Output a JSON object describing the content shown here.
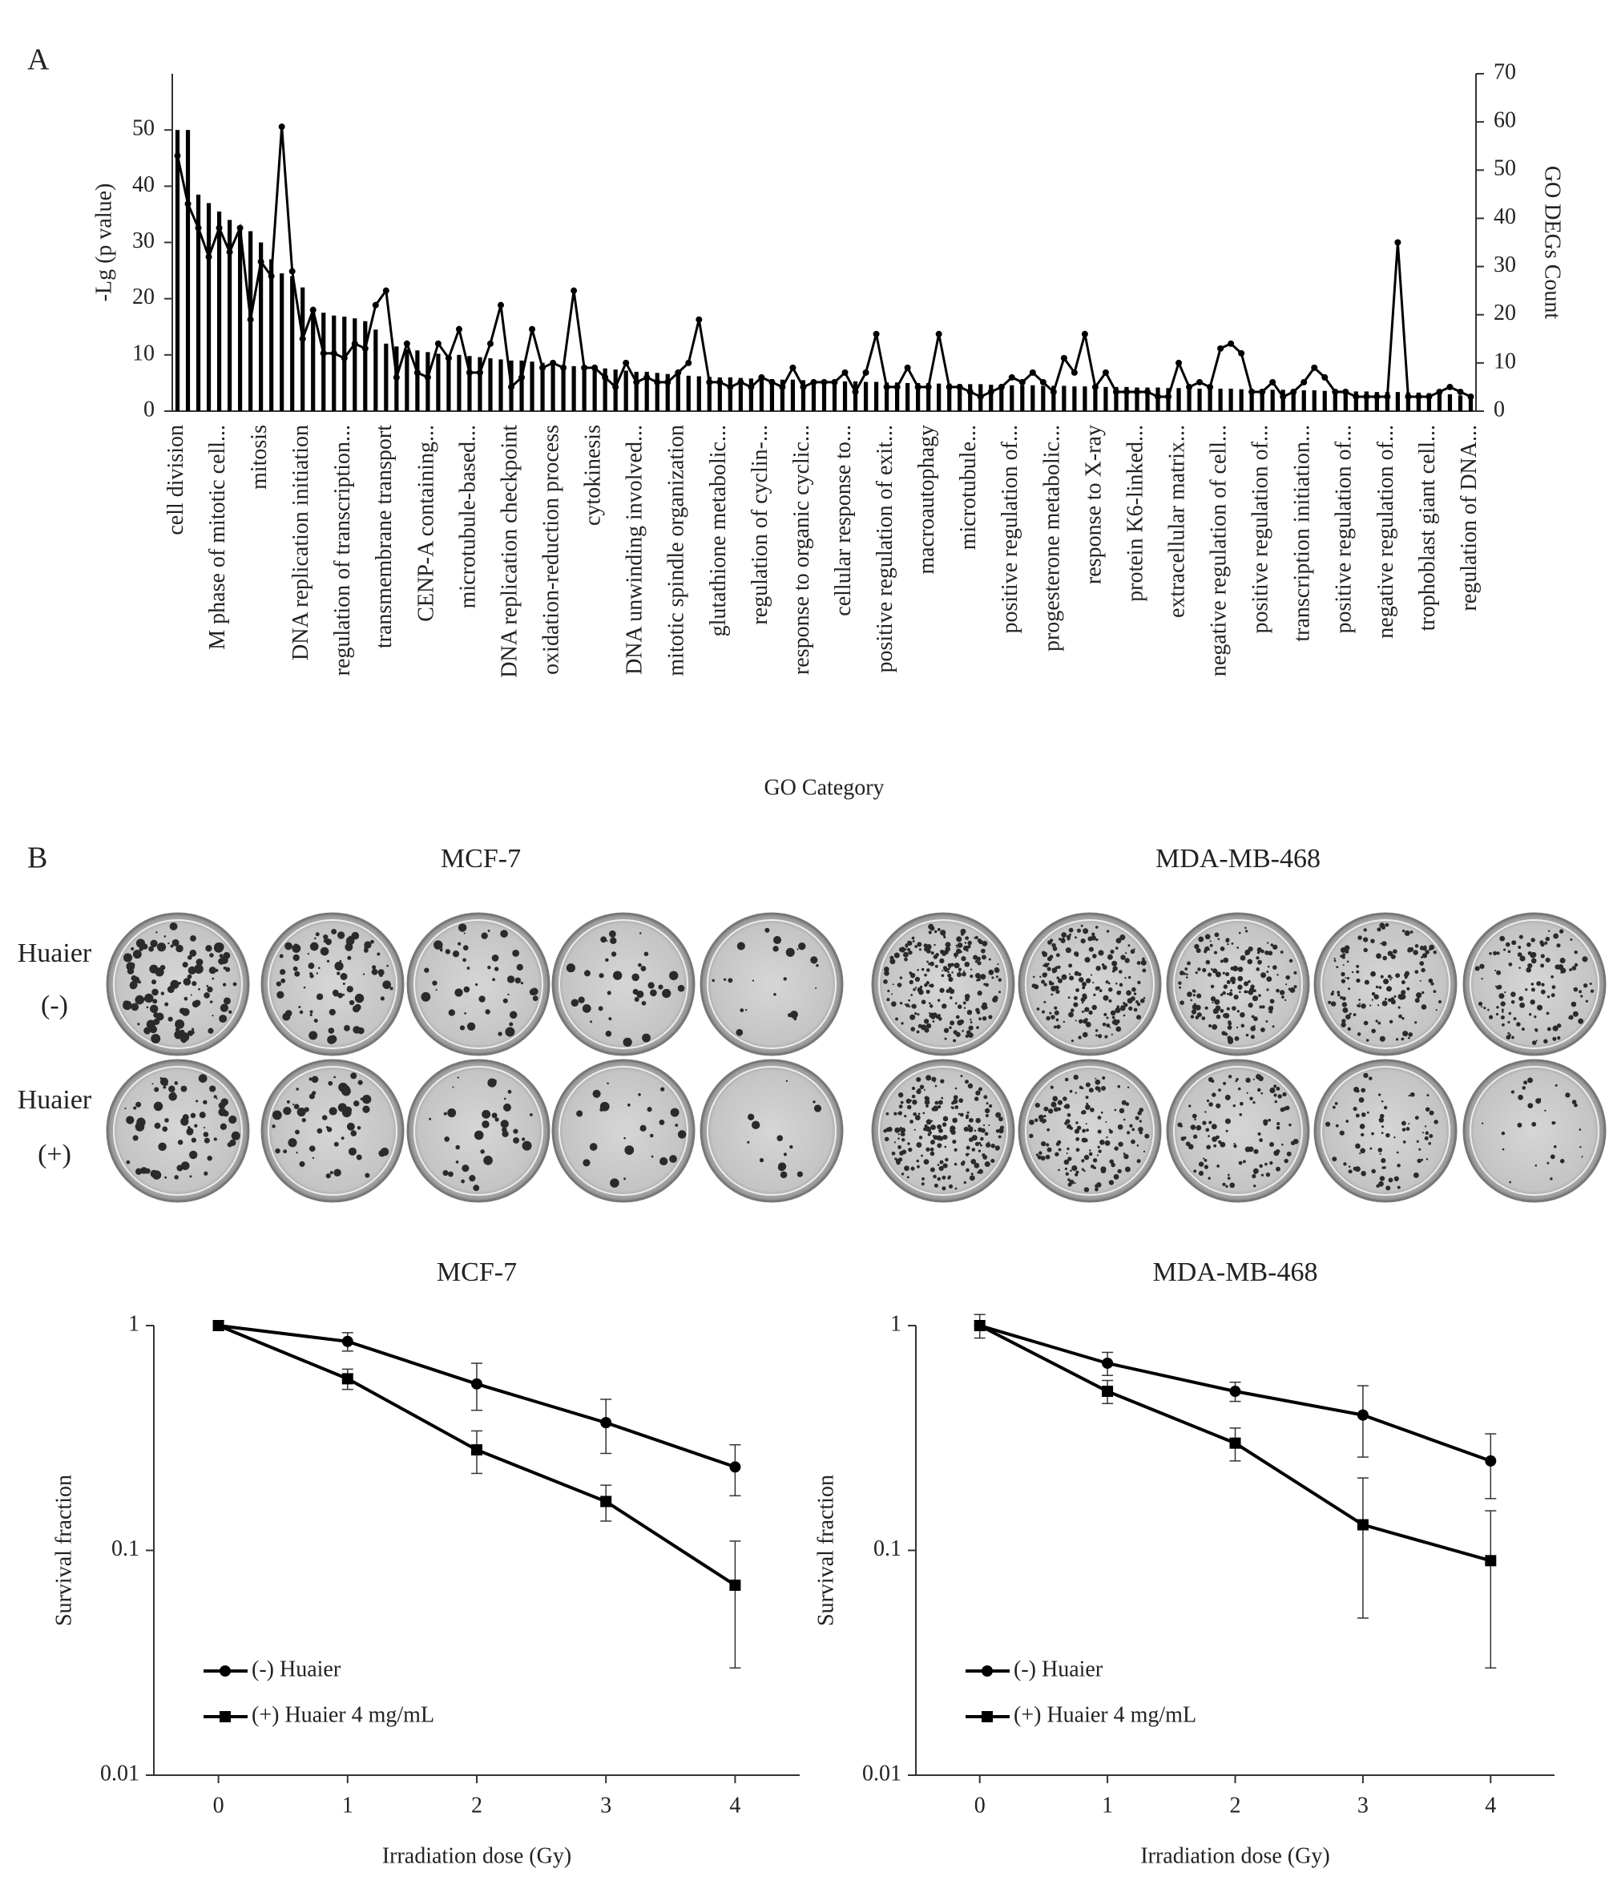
{
  "panel_labels": [
    "A",
    "B"
  ],
  "colony_assay": {
    "cell_lines": [
      "MCF-7",
      "MDA-MB-468"
    ],
    "rows": [
      {
        "label": "Huaier",
        "sign": "(-)"
      },
      {
        "label": "Huaier",
        "sign": "(+)"
      }
    ]
  },
  "chart_data": [
    {
      "type": "combo",
      "xlabel": "GO Category",
      "ylabel": "-Lg (p value)",
      "y2label": "GO DEGs Count",
      "ylim": [
        0,
        60
      ],
      "yticks": [
        0,
        10,
        20,
        30,
        40,
        50
      ],
      "y2lim": [
        0,
        70
      ],
      "y2ticks": [
        0,
        10,
        20,
        30,
        40,
        50,
        60,
        70
      ],
      "categories": [
        "cell division",
        null,
        null,
        null,
        "M phase of mitotic cell...",
        null,
        null,
        null,
        "mitosis",
        null,
        null,
        null,
        "DNA replication initiation",
        null,
        null,
        null,
        "regulation of transcription...",
        null,
        null,
        null,
        "transmembrane transport",
        null,
        null,
        null,
        "CENP-A containing...",
        null,
        null,
        null,
        "microtubule-based...",
        null,
        null,
        null,
        "DNA replication checkpoint",
        null,
        null,
        null,
        "oxidation-reduction process",
        null,
        null,
        null,
        "cytokinesis",
        null,
        null,
        null,
        "DNA unwinding involved...",
        null,
        null,
        null,
        "mitotic spindle organization",
        null,
        null,
        null,
        "glutathione metabolic...",
        null,
        null,
        null,
        "regulation of cyclin-...",
        null,
        null,
        null,
        "response to organic cyclic...",
        null,
        null,
        null,
        "cellular response to...",
        null,
        null,
        null,
        "positive regulation of exit...",
        null,
        null,
        null,
        "macroautophagy",
        null,
        null,
        null,
        "microtubule...",
        null,
        null,
        null,
        "positive regulation of...",
        null,
        null,
        null,
        "progesterone metabolic...",
        null,
        null,
        null,
        "response to X-ray",
        null,
        null,
        null,
        "protein K6-linked...",
        null,
        null,
        null,
        "extracellular matrix...",
        null,
        null,
        null,
        "negative regulation of cell...",
        null,
        null,
        null,
        "positive regulation of...",
        null,
        null,
        null,
        "transcription initiation...",
        null,
        null,
        null,
        "positive regulation of...",
        null,
        null,
        null,
        "negative regulation of...",
        null,
        null,
        null,
        "trophoblast giant cell...",
        null,
        null,
        null,
        "regulation of DNA..."
      ],
      "series": [
        {
          "type": "bar",
          "color": "#000000",
          "values": [
            50,
            50,
            38.5,
            37,
            35.5,
            34,
            33,
            32,
            30,
            27,
            24.5,
            24,
            22,
            18,
            17.5,
            17,
            16.8,
            16.5,
            16,
            14.5,
            12,
            11.5,
            11,
            10.8,
            10.5,
            10.2,
            10,
            10,
            9.8,
            9.6,
            9.4,
            9.2,
            9,
            9,
            8.8,
            8.6,
            8.4,
            8.2,
            8,
            8,
            7.8,
            7.6,
            7.4,
            7.2,
            7,
            7,
            6.8,
            6.6,
            6.4,
            6.3,
            6.2,
            6.1,
            6,
            6,
            5.9,
            5.8,
            5.8,
            5.7,
            5.6,
            5.6,
            5.5,
            5.5,
            5.4,
            5.4,
            5.3,
            5.3,
            5.2,
            5.2,
            5.1,
            5.1,
            5,
            5,
            5,
            4.9,
            4.9,
            4.8,
            4.8,
            4.8,
            4.7,
            4.7,
            4.6,
            4.6,
            4.6,
            4.5,
            4.5,
            4.5,
            4.4,
            4.4,
            4.4,
            4.3,
            4.3,
            4.3,
            4.2,
            4.2,
            4.2,
            4.1,
            4.1,
            4.1,
            4,
            4,
            4,
            4,
            3.9,
            3.9,
            3.9,
            3.8,
            3.8,
            3.8,
            3.7,
            3.7,
            3.6,
            3.6,
            3.5,
            3.5,
            3.5,
            3.4,
            3.4,
            3.4,
            3.3,
            3.3,
            3.2,
            3.1,
            3,
            2.8,
            2.6
          ]
        },
        {
          "type": "line",
          "axis": "y2",
          "color": "#000000",
          "values": [
            53,
            43,
            38,
            32,
            38,
            33,
            38,
            19,
            31,
            28,
            59,
            29,
            15,
            21,
            12,
            12,
            11,
            14,
            13,
            22,
            25,
            7,
            14,
            8,
            7,
            14,
            11,
            17,
            8,
            8,
            14,
            22,
            5,
            7,
            17,
            9,
            10,
            9,
            25,
            9,
            9,
            7,
            5,
            10,
            6,
            7,
            6,
            6,
            8,
            10,
            19,
            6,
            6,
            5,
            6,
            5,
            7,
            6,
            5,
            9,
            5,
            6,
            6,
            6,
            8,
            4,
            8,
            16,
            5,
            5,
            9,
            5,
            5,
            16,
            5,
            5,
            4,
            3,
            4,
            5,
            7,
            6,
            8,
            6,
            4,
            11,
            8,
            16,
            5,
            8,
            4,
            4,
            4,
            4,
            3,
            3,
            10,
            5,
            6,
            5,
            13,
            14,
            12,
            4,
            4,
            6,
            3,
            4,
            6,
            9,
            7,
            4,
            4,
            3,
            3,
            3,
            3,
            35,
            3,
            3,
            3,
            4,
            5,
            4,
            3
          ]
        }
      ]
    },
    {
      "type": "line",
      "title": "MCF-7",
      "xlabel": "Irradiation dose (Gy)",
      "ylabel": "Survival fraction",
      "log_y": true,
      "xlim": [
        -0.5,
        4.5
      ],
      "xticks": [
        0,
        1,
        2,
        3,
        4
      ],
      "ylim": [
        0.01,
        1
      ],
      "yticks": [
        0.01,
        0.1,
        1
      ],
      "legend": "lower left",
      "x": [
        0,
        1,
        2,
        3,
        4
      ],
      "series": [
        {
          "name": "(-) Huaier",
          "color": "#000000",
          "marker": "circle",
          "values": [
            1,
            0.85,
            0.55,
            0.37,
            0.235
          ],
          "errors": [
            0.05,
            0.08,
            0.13,
            0.1,
            0.06
          ]
        },
        {
          "name": "(+) Huaier 4 mg/mL",
          "color": "#000000",
          "marker": "square",
          "values": [
            1,
            0.58,
            0.28,
            0.165,
            0.07
          ],
          "errors": [
            0.05,
            0.06,
            0.06,
            0.03,
            0.04
          ]
        }
      ]
    },
    {
      "type": "line",
      "title": "MDA-MB-468",
      "xlabel": "Irradiation dose (Gy)",
      "ylabel": "Survival fraction",
      "log_y": true,
      "xlim": [
        -0.5,
        4.5
      ],
      "xticks": [
        0,
        1,
        2,
        3,
        4
      ],
      "ylim": [
        0.01,
        1
      ],
      "yticks": [
        0.01,
        0.1,
        1
      ],
      "legend": "lower left",
      "x": [
        0,
        1,
        2,
        3,
        4
      ],
      "series": [
        {
          "name": "(-) Huaier",
          "color": "#000000",
          "marker": "circle",
          "values": [
            1,
            0.68,
            0.51,
            0.4,
            0.25
          ],
          "errors": [
            0.12,
            0.08,
            0.05,
            0.14,
            0.08
          ]
        },
        {
          "name": "(+) Huaier 4 mg/mL",
          "color": "#000000",
          "marker": "square",
          "values": [
            1,
            0.51,
            0.3,
            0.13,
            0.09
          ],
          "errors": [
            0.05,
            0.06,
            0.05,
            0.08,
            0.06
          ]
        }
      ]
    }
  ]
}
